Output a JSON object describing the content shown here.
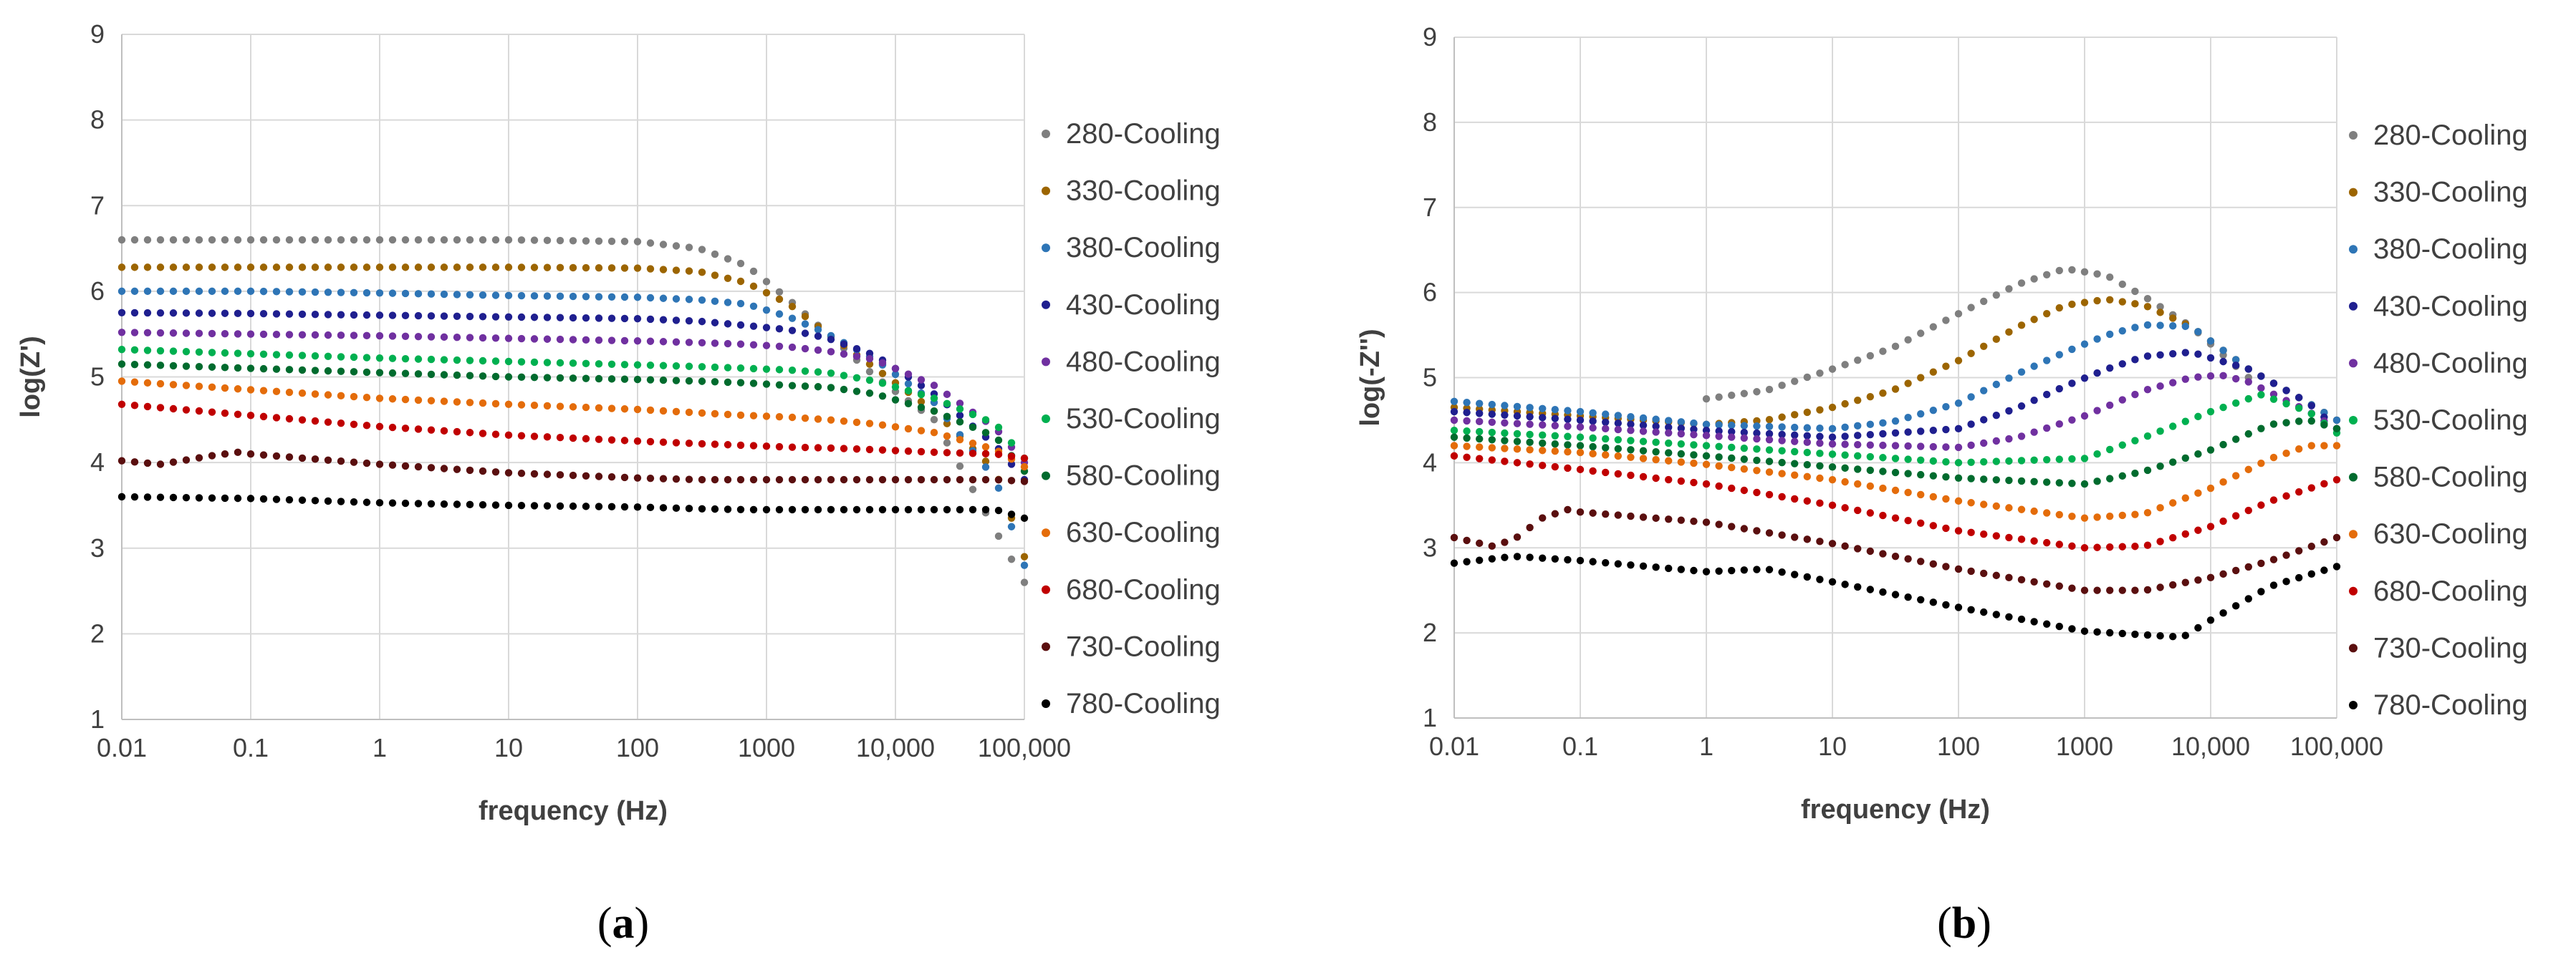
{
  "chart_data": [
    {
      "type": "scatter",
      "panel": "a",
      "panel_label": {
        "open": "(",
        "letter": "a",
        "close": ")"
      },
      "title": "",
      "xlabel": "frequency (Hz)",
      "ylabel": "log(Z')",
      "xscale": "log",
      "xlim": [
        0.01,
        100000
      ],
      "ylim": [
        1,
        9
      ],
      "xticks": [
        0.01,
        0.1,
        1,
        10,
        100,
        1000,
        10000,
        100000
      ],
      "xtick_labels": [
        "0.01",
        "0.1",
        "1",
        "10",
        "100",
        "1000",
        "10,000",
        "100,000"
      ],
      "yticks": [
        1,
        2,
        3,
        4,
        5,
        6,
        7,
        8,
        9
      ],
      "ytick_labels": [
        "1",
        "2",
        "3",
        "4",
        "5",
        "6",
        "7",
        "8",
        "9"
      ],
      "grid": true,
      "legend_position": "right",
      "series": [
        {
          "name": "280-Cooling",
          "color": "#7f7f7f",
          "x": [
            0.01,
            0.1,
            1,
            10,
            100,
            300,
            700,
            1500,
            3000,
            7000,
            20000,
            60000,
            100000
          ],
          "y": [
            6.6,
            6.6,
            6.6,
            6.6,
            6.58,
            6.5,
            6.3,
            5.9,
            5.5,
            5.0,
            4.5,
            3.2,
            2.6
          ]
        },
        {
          "name": "330-Cooling",
          "color": "#9c6500",
          "x": [
            0.01,
            0.1,
            1,
            10,
            100,
            300,
            700,
            1500,
            3000,
            7000,
            20000,
            60000,
            100000
          ],
          "y": [
            6.28,
            6.28,
            6.28,
            6.28,
            6.27,
            6.23,
            6.1,
            5.85,
            5.5,
            5.1,
            4.6,
            3.9,
            2.9
          ]
        },
        {
          "name": "380-Cooling",
          "color": "#2e75b6",
          "x": [
            0.01,
            0.1,
            1,
            10,
            100,
            300,
            700,
            1500,
            3000,
            7000,
            20000,
            60000,
            100000
          ],
          "y": [
            6.0,
            6.0,
            5.98,
            5.95,
            5.93,
            5.9,
            5.85,
            5.7,
            5.5,
            5.2,
            4.7,
            3.8,
            2.8
          ]
        },
        {
          "name": "430-Cooling",
          "color": "#1f1f8f",
          "x": [
            0.01,
            0.1,
            1,
            10,
            100,
            300,
            700,
            1500,
            3000,
            7000,
            20000,
            60000,
            100000
          ],
          "y": [
            5.75,
            5.74,
            5.72,
            5.7,
            5.68,
            5.65,
            5.6,
            5.55,
            5.45,
            5.25,
            4.8,
            4.2,
            3.8
          ]
        },
        {
          "name": "480-Cooling",
          "color": "#7030a0",
          "x": [
            0.01,
            0.1,
            1,
            10,
            100,
            300,
            700,
            1500,
            3000,
            7000,
            20000,
            60000,
            100000
          ],
          "y": [
            5.52,
            5.5,
            5.48,
            5.45,
            5.42,
            5.4,
            5.38,
            5.35,
            5.3,
            5.2,
            4.9,
            4.4,
            4.0
          ]
        },
        {
          "name": "530-Cooling",
          "color": "#00b050",
          "x": [
            0.01,
            0.1,
            1,
            10,
            100,
            300,
            700,
            1500,
            3000,
            7000,
            20000,
            60000,
            100000
          ],
          "y": [
            5.32,
            5.27,
            5.22,
            5.18,
            5.14,
            5.12,
            5.1,
            5.08,
            5.05,
            4.95,
            4.75,
            4.45,
            4.05
          ]
        },
        {
          "name": "580-Cooling",
          "color": "#006b2e",
          "x": [
            0.01,
            0.1,
            1,
            10,
            100,
            300,
            700,
            1500,
            3000,
            7000,
            20000,
            60000,
            100000
          ],
          "y": [
            5.15,
            5.1,
            5.05,
            5.0,
            4.97,
            4.95,
            4.93,
            4.9,
            4.88,
            4.8,
            4.6,
            4.3,
            3.9
          ]
        },
        {
          "name": "630-Cooling",
          "color": "#e46c0a",
          "x": [
            0.01,
            0.1,
            1,
            10,
            100,
            300,
            700,
            1500,
            3000,
            7000,
            20000,
            60000,
            100000
          ],
          "y": [
            4.95,
            4.85,
            4.75,
            4.68,
            4.62,
            4.58,
            4.55,
            4.53,
            4.5,
            4.45,
            4.35,
            4.15,
            3.95
          ]
        },
        {
          "name": "680-Cooling",
          "color": "#c00000",
          "x": [
            0.01,
            0.1,
            1,
            10,
            100,
            300,
            700,
            1500,
            3000,
            7000,
            20000,
            60000,
            100000
          ],
          "y": [
            4.68,
            4.55,
            4.42,
            4.32,
            4.25,
            4.22,
            4.2,
            4.18,
            4.17,
            4.15,
            4.12,
            4.1,
            4.05
          ]
        },
        {
          "name": "730-Cooling",
          "color": "#5a0f0f",
          "x": [
            0.01,
            0.02,
            0.05,
            0.08,
            0.1,
            1,
            10,
            100,
            300,
            700,
            1500,
            3000,
            7000,
            20000,
            60000,
            100000
          ],
          "y": [
            4.02,
            3.98,
            4.08,
            4.12,
            4.1,
            3.98,
            3.88,
            3.82,
            3.8,
            3.8,
            3.8,
            3.8,
            3.8,
            3.8,
            3.8,
            3.78
          ]
        },
        {
          "name": "780-Cooling",
          "color": "#000000",
          "x": [
            0.01,
            0.1,
            1,
            10,
            100,
            300,
            700,
            1500,
            3000,
            7000,
            20000,
            60000,
            100000
          ],
          "y": [
            3.6,
            3.58,
            3.53,
            3.5,
            3.48,
            3.46,
            3.45,
            3.45,
            3.45,
            3.45,
            3.45,
            3.45,
            3.35
          ]
        }
      ]
    },
    {
      "type": "scatter",
      "panel": "b",
      "panel_label": {
        "open": "(",
        "letter": "b",
        "close": ")"
      },
      "title": "",
      "xlabel": "frequency (Hz)",
      "ylabel": "log(-Z'')",
      "xscale": "log",
      "xlim": [
        0.01,
        100000
      ],
      "ylim": [
        1,
        9
      ],
      "xticks": [
        0.01,
        0.1,
        1,
        10,
        100,
        1000,
        10000,
        100000
      ],
      "xtick_labels": [
        "0.01",
        "0.1",
        "1",
        "10",
        "100",
        "1000",
        "10,000",
        "100,000"
      ],
      "yticks": [
        1,
        2,
        3,
        4,
        5,
        6,
        7,
        8,
        9
      ],
      "ytick_labels": [
        "1",
        "2",
        "3",
        "4",
        "5",
        "6",
        "7",
        "8",
        "9"
      ],
      "grid": true,
      "legend_position": "right",
      "series": [
        {
          "name": "280-Cooling",
          "color": "#7f7f7f",
          "x": [
            1,
            3,
            10,
            30,
            100,
            300,
            700,
            1500,
            3000,
            7000,
            20000
          ],
          "y": [
            4.75,
            4.85,
            5.1,
            5.35,
            5.75,
            6.1,
            6.28,
            6.2,
            5.95,
            5.6,
            5.0
          ]
        },
        {
          "name": "330-Cooling",
          "color": "#9c6500",
          "x": [
            0.01,
            0.1,
            1,
            3,
            10,
            30,
            100,
            300,
            700,
            1500,
            3000,
            7000,
            20000,
            60000,
            100000
          ],
          "y": [
            4.65,
            4.55,
            4.45,
            4.5,
            4.65,
            4.85,
            5.2,
            5.6,
            5.85,
            5.92,
            5.85,
            5.6,
            5.1,
            4.7,
            4.5
          ]
        },
        {
          "name": "380-Cooling",
          "color": "#2e75b6",
          "x": [
            0.01,
            0.1,
            1,
            10,
            30,
            100,
            300,
            700,
            1500,
            3000,
            7000,
            20000,
            60000,
            100000
          ],
          "y": [
            4.72,
            4.6,
            4.45,
            4.4,
            4.48,
            4.7,
            5.05,
            5.3,
            5.5,
            5.62,
            5.6,
            5.1,
            4.7,
            4.5
          ]
        },
        {
          "name": "430-Cooling",
          "color": "#1f1f8f",
          "x": [
            0.01,
            0.1,
            1,
            10,
            100,
            300,
            700,
            1500,
            3000,
            7000,
            20000,
            60000,
            100000
          ],
          "y": [
            4.6,
            4.5,
            4.38,
            4.3,
            4.4,
            4.65,
            4.9,
            5.1,
            5.25,
            5.3,
            5.1,
            4.7,
            4.4
          ]
        },
        {
          "name": "480-Cooling",
          "color": "#7030a0",
          "x": [
            0.01,
            0.1,
            1,
            10,
            100,
            300,
            1000,
            3000,
            7000,
            12000,
            20000,
            60000,
            100000
          ],
          "y": [
            4.5,
            4.42,
            4.32,
            4.22,
            4.18,
            4.3,
            4.55,
            4.85,
            5.0,
            5.03,
            4.95,
            4.6,
            4.4
          ]
        },
        {
          "name": "530-Cooling",
          "color": "#00b050",
          "x": [
            0.01,
            0.1,
            1,
            10,
            100,
            1000,
            3000,
            10000,
            25000,
            60000,
            100000
          ],
          "y": [
            4.38,
            4.3,
            4.2,
            4.1,
            4.0,
            4.05,
            4.3,
            4.6,
            4.8,
            4.6,
            4.35
          ]
        },
        {
          "name": "580-Cooling",
          "color": "#006b2e",
          "x": [
            0.01,
            0.1,
            1,
            10,
            100,
            1000,
            3000,
            10000,
            30000,
            60000,
            100000
          ],
          "y": [
            4.3,
            4.2,
            4.08,
            3.95,
            3.82,
            3.75,
            3.9,
            4.15,
            4.45,
            4.5,
            4.4
          ]
        },
        {
          "name": "630-Cooling",
          "color": "#e46c0a",
          "x": [
            0.01,
            0.1,
            1,
            10,
            100,
            1000,
            3000,
            10000,
            30000,
            60000,
            100000
          ],
          "y": [
            4.2,
            4.12,
            3.98,
            3.8,
            3.55,
            3.35,
            3.4,
            3.7,
            4.05,
            4.2,
            4.2
          ]
        },
        {
          "name": "680-Cooling",
          "color": "#c00000",
          "x": [
            0.01,
            0.1,
            1,
            10,
            100,
            1000,
            3000,
            10000,
            30000,
            100000
          ],
          "y": [
            4.08,
            3.92,
            3.75,
            3.5,
            3.2,
            3.0,
            3.02,
            3.25,
            3.55,
            3.8
          ]
        },
        {
          "name": "730-Cooling",
          "color": "#5a0f0f",
          "x": [
            0.01,
            0.02,
            0.03,
            0.05,
            0.08,
            0.1,
            1,
            10,
            100,
            1000,
            3000,
            10000,
            30000,
            100000
          ],
          "y": [
            3.12,
            3.02,
            3.1,
            3.35,
            3.45,
            3.42,
            3.3,
            3.05,
            2.75,
            2.5,
            2.5,
            2.65,
            2.85,
            3.12
          ]
        },
        {
          "name": "780-Cooling",
          "color": "#000000",
          "x": [
            0.01,
            0.03,
            0.1,
            1,
            3,
            10,
            100,
            1000,
            6000,
            10000,
            30000,
            100000
          ],
          "y": [
            2.82,
            2.9,
            2.85,
            2.72,
            2.75,
            2.6,
            2.3,
            2.02,
            1.95,
            2.15,
            2.55,
            2.78
          ]
        }
      ]
    }
  ]
}
